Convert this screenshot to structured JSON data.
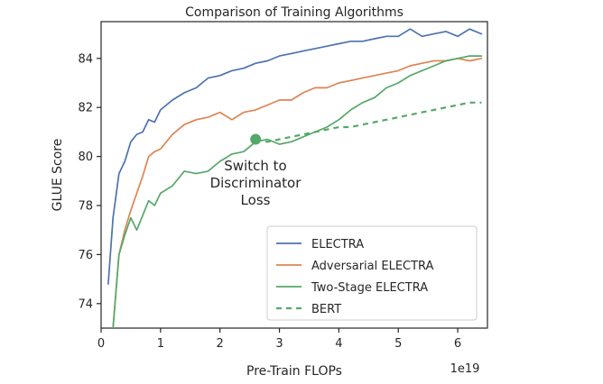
{
  "chart_data": {
    "type": "line",
    "title": "Comparison of Training Algorithms",
    "xlabel": "Pre-Train FLOPs",
    "ylabel": "GLUE Score",
    "x_offset_label": "1e19",
    "xlim": [
      0,
      6.5
    ],
    "ylim": [
      73,
      85.5
    ],
    "xticks": [
      0,
      1,
      2,
      3,
      4,
      5,
      6
    ],
    "yticks": [
      74,
      76,
      78,
      80,
      82,
      84
    ],
    "grid": false,
    "legend_position": "lower-right",
    "annotation": {
      "lines": [
        "Switch to",
        "Discriminator",
        "Loss"
      ],
      "point": [
        2.6,
        80.7
      ]
    },
    "series": [
      {
        "name": "ELECTRA",
        "color": "#4c72b0",
        "style": "solid",
        "x": [
          0.12,
          0.2,
          0.3,
          0.4,
          0.5,
          0.6,
          0.7,
          0.8,
          0.9,
          1.0,
          1.2,
          1.4,
          1.6,
          1.8,
          2.0,
          2.2,
          2.4,
          2.6,
          2.8,
          3.0,
          3.2,
          3.4,
          3.6,
          3.8,
          4.0,
          4.2,
          4.4,
          4.6,
          4.8,
          5.0,
          5.2,
          5.4,
          5.6,
          5.8,
          6.0,
          6.2,
          6.4
        ],
        "y": [
          74.8,
          77.5,
          79.3,
          79.8,
          80.6,
          80.9,
          81.0,
          81.5,
          81.4,
          81.9,
          82.3,
          82.6,
          82.8,
          83.2,
          83.3,
          83.5,
          83.6,
          83.8,
          83.9,
          84.1,
          84.2,
          84.3,
          84.4,
          84.5,
          84.6,
          84.7,
          84.7,
          84.8,
          84.9,
          84.9,
          85.2,
          84.9,
          85.0,
          85.1,
          84.9,
          85.2,
          85.0
        ]
      },
      {
        "name": "Adversarial ELECTRA",
        "color": "#dd8452",
        "style": "solid",
        "x": [
          0.2,
          0.3,
          0.4,
          0.5,
          0.6,
          0.7,
          0.8,
          0.9,
          1.0,
          1.2,
          1.4,
          1.6,
          1.8,
          2.0,
          2.2,
          2.4,
          2.6,
          2.8,
          3.0,
          3.2,
          3.4,
          3.6,
          3.8,
          4.0,
          4.2,
          4.4,
          4.6,
          4.8,
          5.0,
          5.2,
          5.4,
          5.6,
          5.8,
          6.0,
          6.2,
          6.4
        ],
        "y": [
          73.0,
          76.0,
          77.0,
          77.8,
          78.5,
          79.2,
          80.0,
          80.2,
          80.3,
          80.9,
          81.3,
          81.5,
          81.6,
          81.8,
          81.5,
          81.8,
          81.9,
          82.1,
          82.3,
          82.3,
          82.6,
          82.8,
          82.8,
          83.0,
          83.1,
          83.2,
          83.3,
          83.4,
          83.5,
          83.7,
          83.8,
          83.9,
          83.9,
          84.0,
          83.9,
          84.0
        ]
      },
      {
        "name": "Two-Stage ELECTRA",
        "color": "#55a868",
        "style": "solid",
        "x": [
          0.2,
          0.3,
          0.4,
          0.5,
          0.6,
          0.7,
          0.8,
          0.9,
          1.0,
          1.2,
          1.4,
          1.6,
          1.8,
          2.0,
          2.2,
          2.4,
          2.6,
          2.8,
          3.0,
          3.2,
          3.4,
          3.6,
          3.8,
          4.0,
          4.2,
          4.4,
          4.6,
          4.8,
          5.0,
          5.2,
          5.4,
          5.6,
          5.8,
          6.0,
          6.2,
          6.4
        ],
        "y": [
          73.0,
          76.0,
          76.8,
          77.5,
          77.0,
          77.6,
          78.2,
          78.0,
          78.5,
          78.8,
          79.4,
          79.3,
          79.4,
          79.8,
          80.1,
          80.2,
          80.6,
          80.7,
          80.5,
          80.6,
          80.8,
          81.0,
          81.2,
          81.5,
          81.9,
          82.2,
          82.4,
          82.8,
          83.0,
          83.3,
          83.5,
          83.7,
          83.9,
          84.0,
          84.1,
          84.1
        ]
      },
      {
        "name": "BERT",
        "color": "#55a868",
        "style": "dashed",
        "x": [
          2.6,
          2.8,
          3.0,
          3.2,
          3.4,
          3.6,
          3.8,
          4.0,
          4.2,
          4.4,
          4.6,
          4.8,
          5.0,
          5.2,
          5.4,
          5.6,
          5.8,
          6.0,
          6.2,
          6.4
        ],
        "y": [
          80.7,
          80.6,
          80.7,
          80.8,
          80.9,
          81.0,
          81.1,
          81.2,
          81.2,
          81.3,
          81.4,
          81.5,
          81.6,
          81.7,
          81.8,
          81.9,
          82.0,
          82.1,
          82.2,
          82.2
        ]
      }
    ]
  }
}
